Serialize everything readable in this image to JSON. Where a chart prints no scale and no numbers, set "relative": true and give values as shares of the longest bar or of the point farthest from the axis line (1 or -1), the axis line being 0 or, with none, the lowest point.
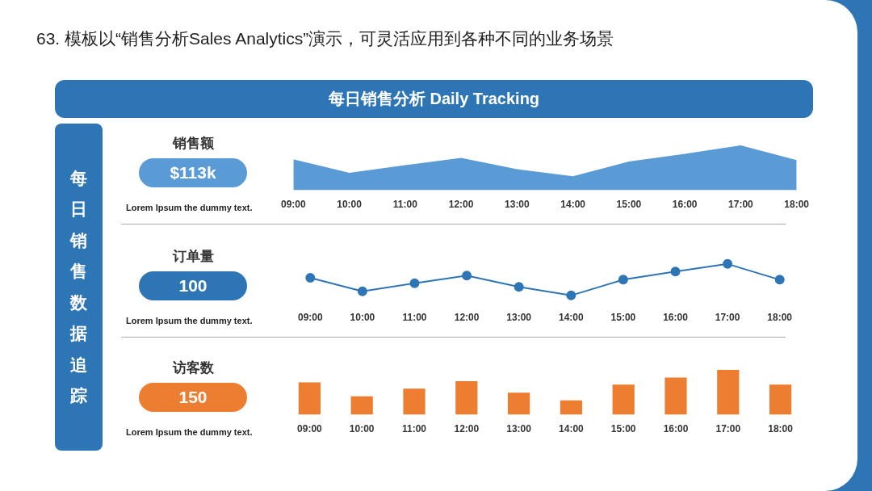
{
  "chart_data": [
    {
      "type": "other",
      "title": "63. 模板以“销售分析Sales Analytics”演示，可灵活应用到各种不同的业务场景",
      "subtitle": "每日销售分析 Daily Tracking",
      "annotations": [
        "每日销售数据追踪"
      ]
    },
    {
      "type": "area",
      "title": "销售额",
      "relative": true,
      "categories": [
        "09:00",
        "10:00",
        "11:00",
        "12:00",
        "13:00",
        "14:00",
        "15:00",
        "16:00",
        "17:00",
        "18:00"
      ],
      "color": "#5b9bd5",
      "values": [
        0.69,
        0.39,
        0.56,
        0.72,
        0.47,
        0.31,
        0.64,
        0.81,
        1,
        0.67
      ],
      "annotations": [
        "$113k",
        "Lorem Ipsum the dummy text."
      ]
    },
    {
      "type": "line",
      "title": "订单量",
      "relative": true,
      "marker": "circle",
      "categories": [
        "09:00",
        "10:00",
        "11:00",
        "12:00",
        "13:00",
        "14:00",
        "15:00",
        "16:00",
        "17:00",
        "18:00"
      ],
      "color": "#2e75b6",
      "values": [
        0.56,
        0.13,
        0.39,
        0.63,
        0.27,
        0,
        0.5,
        0.76,
        1,
        0.5
      ],
      "annotations": [
        "100",
        "Lorem Ipsum the dummy text."
      ]
    },
    {
      "type": "bar",
      "title": "访客数",
      "relative": true,
      "categories": [
        "09:00",
        "10:00",
        "11:00",
        "12:00",
        "13:00",
        "14:00",
        "15:00",
        "16:00",
        "17:00",
        "18:00"
      ],
      "color": "#ed7d31",
      "values": [
        0.72,
        0.41,
        0.58,
        0.75,
        0.49,
        0.32,
        0.67,
        0.83,
        1,
        0.67
      ],
      "annotations": [
        "150",
        "Lorem Ipsum the dummy text."
      ]
    }
  ]
}
